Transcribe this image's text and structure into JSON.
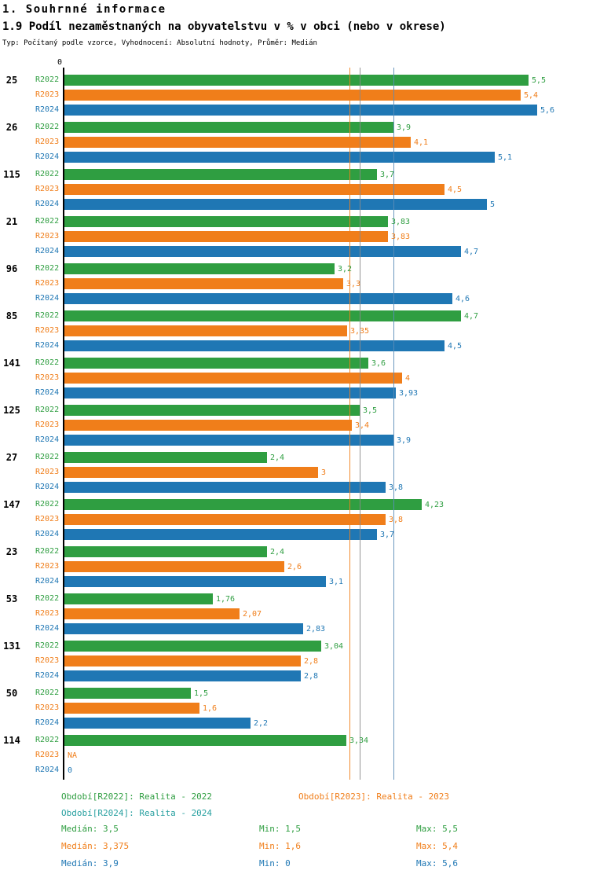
{
  "header": {
    "title": "1. Souhrnné informace",
    "subtitle": "1.9 Podíl nezaměstnaných na obyvatelstvu v % v obci (nebo v okrese)",
    "info": "Typ: Počítaný podle vzorce, Vyhodnocení: Absolutní hodnoty, Průměr: Medián"
  },
  "chart_data": {
    "type": "bar",
    "orientation": "horizontal",
    "x_origin_label": "0",
    "xlim": [
      0,
      5.75
    ],
    "grid": false,
    "series": [
      {
        "name": "R2022",
        "color": "#2f9e41"
      },
      {
        "name": "R2023",
        "color": "#f07e1a"
      },
      {
        "name": "R2024",
        "color": "#1f77b4"
      }
    ],
    "groups": [
      {
        "id": "25",
        "values": [
          5.5,
          5.4,
          5.6
        ],
        "labels": [
          "5,5",
          "5,4",
          "5,6"
        ]
      },
      {
        "id": "26",
        "values": [
          3.9,
          4.1,
          5.1
        ],
        "labels": [
          "3,9",
          "4,1",
          "5,1"
        ]
      },
      {
        "id": "115",
        "values": [
          3.7,
          4.5,
          5.0
        ],
        "labels": [
          "3,7",
          "4,5",
          "5"
        ]
      },
      {
        "id": "21",
        "values": [
          3.83,
          3.83,
          4.7
        ],
        "labels": [
          "3,83",
          "3,83",
          "4,7"
        ]
      },
      {
        "id": "96",
        "values": [
          3.2,
          3.3,
          4.6
        ],
        "labels": [
          "3,2",
          "3,3",
          "4,6"
        ]
      },
      {
        "id": "85",
        "values": [
          4.7,
          3.35,
          4.5
        ],
        "labels": [
          "4,7",
          "3,35",
          "4,5"
        ]
      },
      {
        "id": "141",
        "values": [
          3.6,
          4.0,
          3.93
        ],
        "labels": [
          "3,6",
          "4",
          "3,93"
        ]
      },
      {
        "id": "125",
        "values": [
          3.5,
          3.4,
          3.9
        ],
        "labels": [
          "3,5",
          "3,4",
          "3,9"
        ]
      },
      {
        "id": "27",
        "values": [
          2.4,
          3.0,
          3.8
        ],
        "labels": [
          "2,4",
          "3",
          "3,8"
        ]
      },
      {
        "id": "147",
        "values": [
          4.23,
          3.8,
          3.7
        ],
        "labels": [
          "4,23",
          "3,8",
          "3,7"
        ]
      },
      {
        "id": "23",
        "values": [
          2.4,
          2.6,
          3.1
        ],
        "labels": [
          "2,4",
          "2,6",
          "3,1"
        ]
      },
      {
        "id": "53",
        "values": [
          1.76,
          2.07,
          2.83
        ],
        "labels": [
          "1,76",
          "2,07",
          "2,83"
        ]
      },
      {
        "id": "131",
        "values": [
          3.04,
          2.8,
          2.8
        ],
        "labels": [
          "3,04",
          "2,8",
          "2,8"
        ]
      },
      {
        "id": "50",
        "values": [
          1.5,
          1.6,
          2.2
        ],
        "labels": [
          "1,5",
          "1,6",
          "2,2"
        ]
      },
      {
        "id": "114",
        "values": [
          3.34,
          null,
          0
        ],
        "labels": [
          "3,34",
          "NA",
          "0"
        ]
      }
    ],
    "reference_lines": [
      {
        "name": "median-r2023",
        "value": 3.375,
        "color": "#f07e1a"
      },
      {
        "name": "median-r2022",
        "value": 3.5,
        "color": "#8a8a8a"
      },
      {
        "name": "median-r2024",
        "value": 3.9,
        "color": "#5b8db8"
      }
    ]
  },
  "legend": {
    "items": [
      {
        "label": "Období[R2022]: Realita - 2022",
        "color": "#2f9e41"
      },
      {
        "label": "Období[R2023]: Realita - 2023",
        "color": "#f07e1a"
      },
      {
        "label": "Období[R2024]: Realita - 2024",
        "color": "#2aa1a1"
      }
    ]
  },
  "stats": {
    "rows": [
      {
        "median": "Medián: 3,5",
        "min": "Min: 1,5",
        "max": "Max: 5,5",
        "color": "#2f9e41"
      },
      {
        "median": "Medián: 3,375",
        "min": "Min: 1,6",
        "max": "Max: 5,4",
        "color": "#f07e1a"
      },
      {
        "median": "Medián: 3,9",
        "min": "Min: 0",
        "max": "Max: 5,6",
        "color": "#1f77b4"
      }
    ]
  }
}
